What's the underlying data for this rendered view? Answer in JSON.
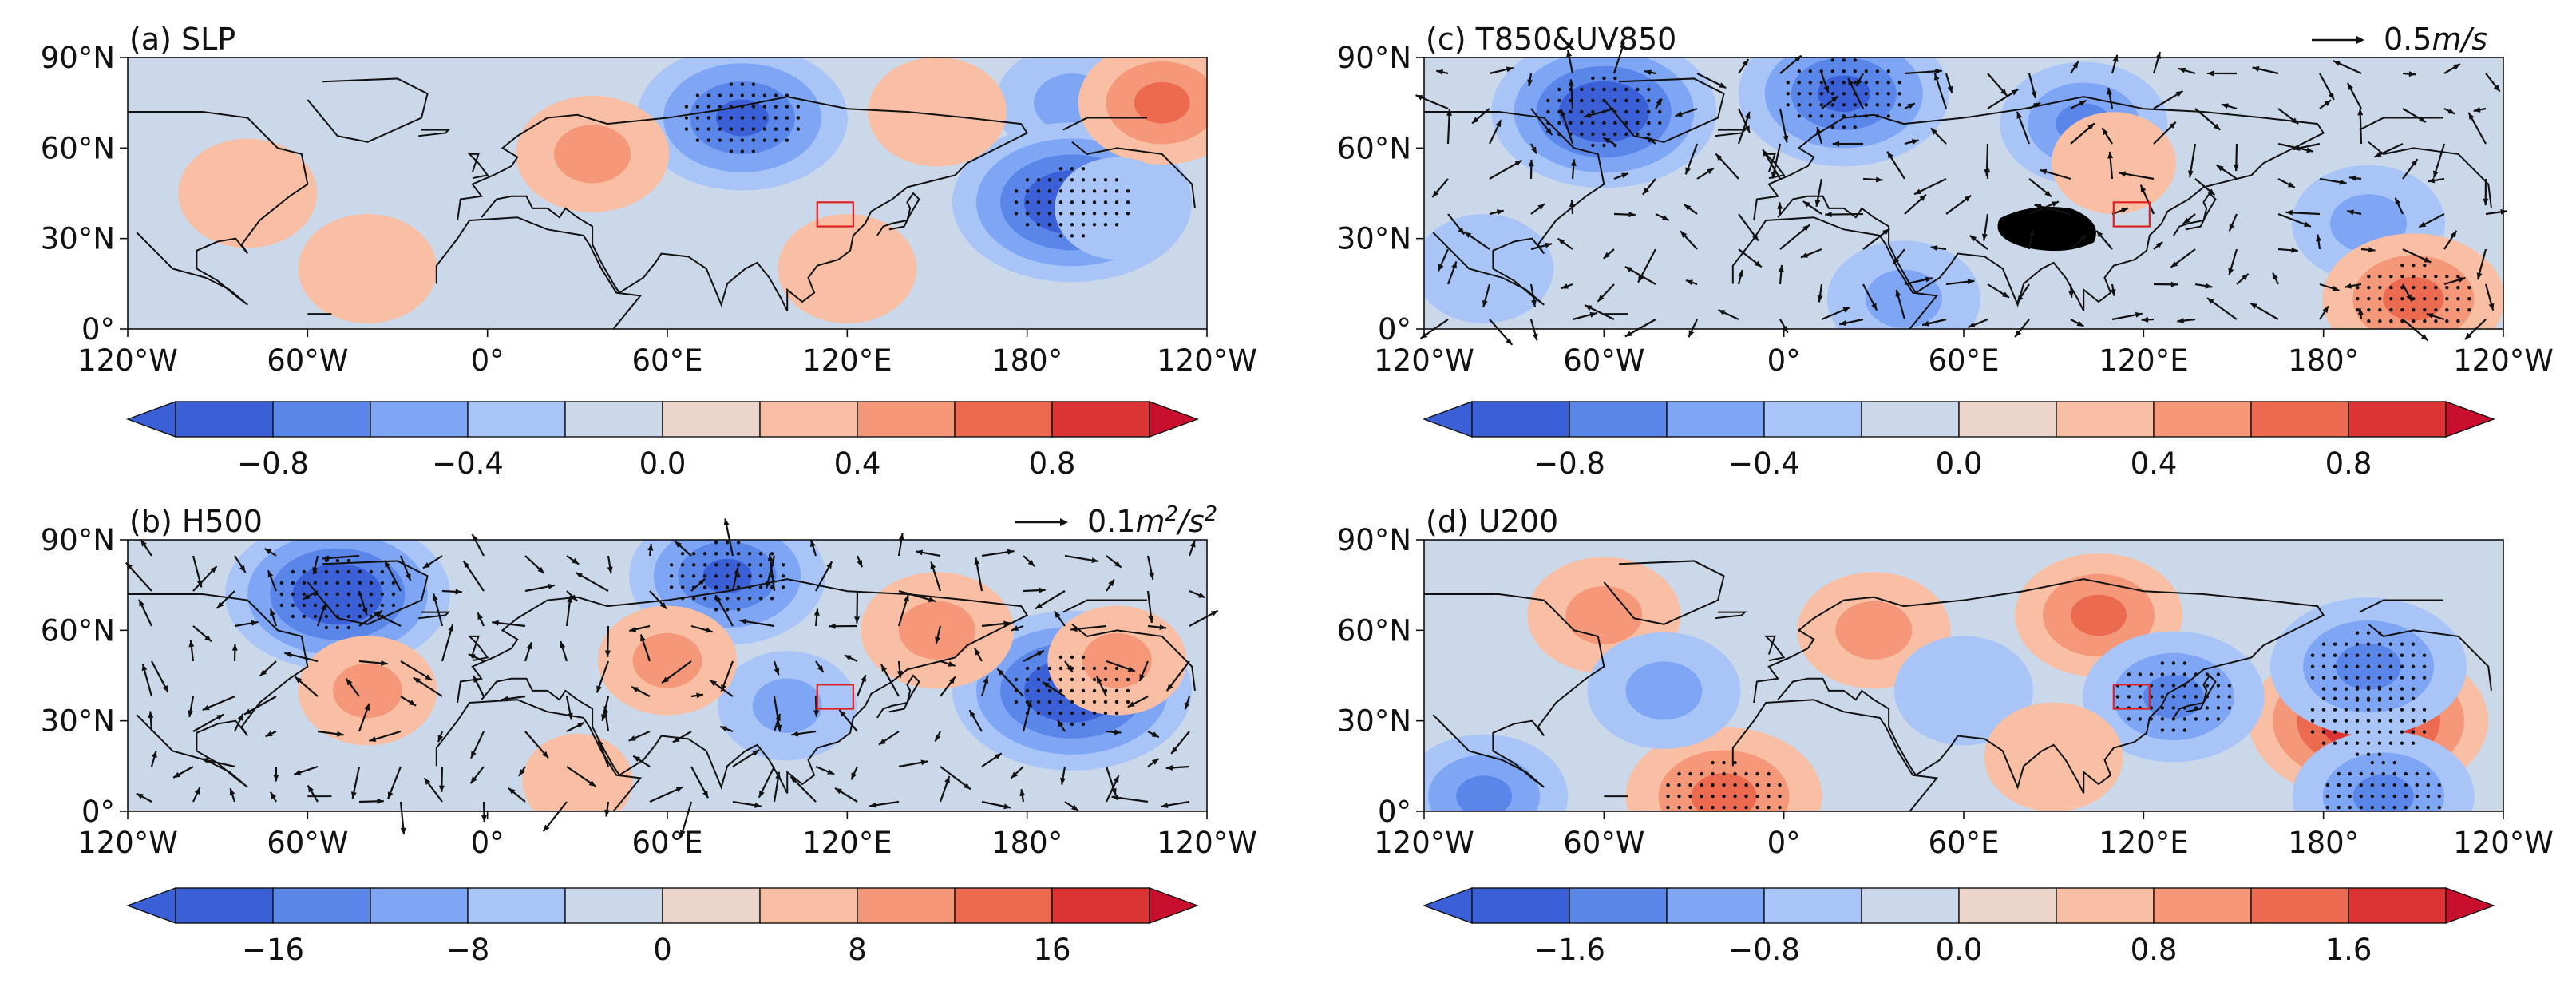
{
  "figure": {
    "colors": {
      "levels": [
        "#3a5fd6",
        "#5a86ea",
        "#7fa6f4",
        "#a9c5f8",
        "#cad8ea",
        "#ecd6cc",
        "#f8bfa4",
        "#f5987a",
        "#ec6a50",
        "#dc3434"
      ],
      "ext_low": "#3a5fd6",
      "ext_high": "#c8102e",
      "box": "#e02020",
      "land": "#000000"
    }
  },
  "chart_data": [
    {
      "id": "a",
      "type": "heatmap",
      "title": "(a) SLP",
      "lon_ticks": [
        "120°W",
        "60°W",
        "0°",
        "60°E",
        "120°E",
        "180°",
        "120°W"
      ],
      "lat_ticks": [
        "90°N",
        "60°N",
        "30°N",
        "0°"
      ],
      "colorbar_ticks": [
        "−0.8",
        "−0.4",
        "0.0",
        "0.4",
        "0.8"
      ],
      "colorbar_range": [
        -1.0,
        1.0
      ],
      "vector_key": "",
      "vector_key_unit": "",
      "vector_key_sup": "",
      "anomaly_centers": [
        {
          "lon": 85,
          "lat": 70,
          "value": -0.8
        },
        {
          "lon": -165,
          "lat": 75,
          "value": -0.4
        },
        {
          "lon": 195,
          "lat": 42,
          "value": -1.0
        },
        {
          "lon": 35,
          "lat": 58,
          "value": 0.4
        },
        {
          "lon": -80,
          "lat": 45,
          "value": 0.3
        },
        {
          "lon": 150,
          "lat": 72,
          "value": 0.3
        },
        {
          "lon": 225,
          "lat": 75,
          "value": 0.5
        },
        {
          "lon": 120,
          "lat": 20,
          "value": 0.3
        },
        {
          "lon": -40,
          "lat": 20,
          "value": 0.3
        },
        {
          "lon": -150,
          "lat": 40,
          "value": -0.2
        }
      ],
      "box": {
        "lon0": 110,
        "lon1": 122,
        "lat0": 34,
        "lat1": 42
      }
    },
    {
      "id": "b",
      "type": "heatmap",
      "title": "(b) H500",
      "lon_ticks": [
        "120°W",
        "60°W",
        "0°",
        "60°E",
        "120°E",
        "180°",
        "120°W"
      ],
      "lat_ticks": [
        "90°N",
        "60°N",
        "30°N",
        "0°"
      ],
      "colorbar_ticks": [
        "−16",
        "−8",
        "0",
        "8",
        "16"
      ],
      "colorbar_range": [
        -20,
        20
      ],
      "vector_key": "0.1",
      "vector_key_unit": "m",
      "vector_key_sup": "2",
      "anomaly_centers": [
        {
          "lon": -50,
          "lat": 72,
          "value": -18
        },
        {
          "lon": 80,
          "lat": 78,
          "value": -14
        },
        {
          "lon": 195,
          "lat": 40,
          "value": -20
        },
        {
          "lon": 100,
          "lat": 35,
          "value": -6
        },
        {
          "lon": -40,
          "lat": 40,
          "value": 6
        },
        {
          "lon": 60,
          "lat": 50,
          "value": 6
        },
        {
          "lon": 150,
          "lat": 60,
          "value": 8
        },
        {
          "lon": -150,
          "lat": 50,
          "value": 6
        },
        {
          "lon": 30,
          "lat": 10,
          "value": 2
        }
      ],
      "box": {
        "lon0": 110,
        "lon1": 122,
        "lat0": 34,
        "lat1": 42
      }
    },
    {
      "id": "c",
      "type": "heatmap",
      "title": "(c) T850&UV850",
      "lon_ticks": [
        "120°W",
        "60°W",
        "0°",
        "60°E",
        "120°E",
        "180°",
        "120°W"
      ],
      "lat_ticks": [
        "90°N",
        "60°N",
        "30°N",
        "0°"
      ],
      "colorbar_ticks": [
        "−0.8",
        "−0.4",
        "0.0",
        "0.4",
        "0.8"
      ],
      "colorbar_range": [
        -1.0,
        1.0
      ],
      "vector_key": "0.5",
      "vector_key_unit": "m/s",
      "vector_key_sup": "",
      "anomaly_centers": [
        {
          "lon": -60,
          "lat": 72,
          "value": -0.9
        },
        {
          "lon": 20,
          "lat": 78,
          "value": -0.8
        },
        {
          "lon": 100,
          "lat": 68,
          "value": -0.5
        },
        {
          "lon": 40,
          "lat": 10,
          "value": -0.4
        },
        {
          "lon": 195,
          "lat": 35,
          "value": -0.4
        },
        {
          "lon": 210,
          "lat": 10,
          "value": 0.6
        },
        {
          "lon": 110,
          "lat": 55,
          "value": 0.2
        },
        {
          "lon": -100,
          "lat": 20,
          "value": -0.3
        }
      ],
      "land_mask": {
        "lon": 88,
        "lat": 33
      },
      "box": {
        "lon0": 110,
        "lon1": 122,
        "lat0": 34,
        "lat1": 42
      }
    },
    {
      "id": "d",
      "type": "heatmap",
      "title": "(d) U200",
      "lon_ticks": [
        "120°W",
        "60°W",
        "0°",
        "60°E",
        "120°E",
        "180°",
        "120°W"
      ],
      "lat_ticks": [
        "90°N",
        "60°N",
        "30°N",
        "0°"
      ],
      "colorbar_ticks": [
        "−1.6",
        "−0.8",
        "0.0",
        "0.8",
        "1.6"
      ],
      "colorbar_range": [
        -2.0,
        2.0
      ],
      "vector_key": "",
      "vector_key_unit": "",
      "vector_key_sup": "",
      "anomaly_centers": [
        {
          "lon": 195,
          "lat": 30,
          "value": 2.0
        },
        {
          "lon": 105,
          "lat": 65,
          "value": 1.0
        },
        {
          "lon": 30,
          "lat": 60,
          "value": 0.8
        },
        {
          "lon": -60,
          "lat": 65,
          "value": 0.8
        },
        {
          "lon": -20,
          "lat": 5,
          "value": 1.4
        },
        {
          "lon": 130,
          "lat": 38,
          "value": -1.2
        },
        {
          "lon": 195,
          "lat": 48,
          "value": -1.4
        },
        {
          "lon": 200,
          "lat": 5,
          "value": -1.2
        },
        {
          "lon": -40,
          "lat": 40,
          "value": -0.8
        },
        {
          "lon": 60,
          "lat": 40,
          "value": -0.6
        },
        {
          "lon": -100,
          "lat": 5,
          "value": -1.0
        },
        {
          "lon": 90,
          "lat": 18,
          "value": 0.6
        }
      ],
      "box": {
        "lon0": 110,
        "lon1": 122,
        "lat0": 34,
        "lat1": 42
      }
    }
  ]
}
